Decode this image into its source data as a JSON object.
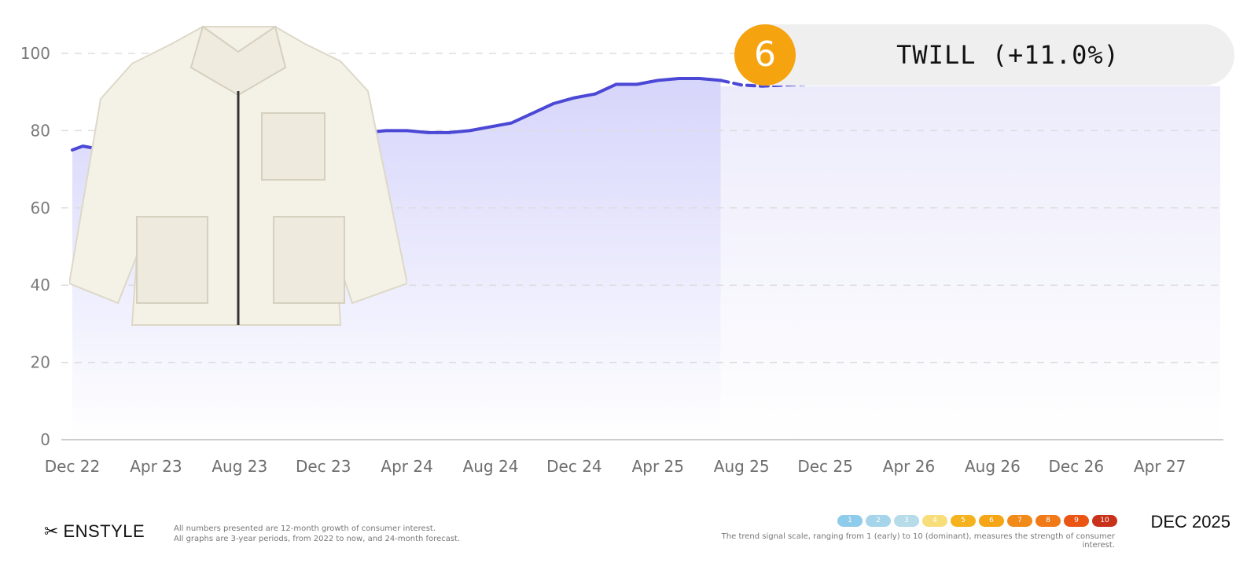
{
  "chart_data": {
    "type": "area",
    "title": "TWILL (+11.0%)",
    "xlabel": "",
    "ylabel": "",
    "ylim": [
      0,
      100
    ],
    "yticks": [
      0,
      20,
      40,
      60,
      80,
      100
    ],
    "x_tick_labels": [
      "Dec 22",
      "Apr 23",
      "Aug 23",
      "Dec 23",
      "Apr 24",
      "Aug 24",
      "Dec 24",
      "Apr 25",
      "Aug 25",
      "Dec 25",
      "Apr 26",
      "Aug 26",
      "Dec 26",
      "Apr 27"
    ],
    "grid": true,
    "series": [
      {
        "style": "solid",
        "points": [
          {
            "m": 0,
            "v": 75
          },
          {
            "m": 0.5,
            "v": 76
          },
          {
            "m": 1,
            "v": 75.5
          },
          {
            "m": 2,
            "v": 76.5
          },
          {
            "m": 3,
            "v": 76
          },
          {
            "m": 4,
            "v": 76.5
          },
          {
            "m": 5,
            "v": 77
          },
          {
            "m": 6,
            "v": 77
          },
          {
            "m": 7,
            "v": 77.5
          },
          {
            "m": 8,
            "v": 77.5
          },
          {
            "m": 9,
            "v": 77.5
          },
          {
            "m": 10,
            "v": 78
          },
          {
            "m": 11,
            "v": 77.5
          },
          {
            "m": 12,
            "v": 77.5
          },
          {
            "m": 13,
            "v": 78
          },
          {
            "m": 14,
            "v": 79.5
          },
          {
            "m": 15,
            "v": 80
          },
          {
            "m": 16,
            "v": 80
          },
          {
            "m": 17,
            "v": 79.5
          },
          {
            "m": 18,
            "v": 79.5
          },
          {
            "m": 19,
            "v": 80
          },
          {
            "m": 20,
            "v": 81
          },
          {
            "m": 21,
            "v": 82
          },
          {
            "m": 22,
            "v": 84.5
          },
          {
            "m": 23,
            "v": 87
          },
          {
            "m": 24,
            "v": 88.5
          },
          {
            "m": 25,
            "v": 89.5
          },
          {
            "m": 26,
            "v": 92
          },
          {
            "m": 27,
            "v": 92
          },
          {
            "m": 28,
            "v": 93
          },
          {
            "m": 29,
            "v": 93.5
          },
          {
            "m": 30,
            "v": 93.5
          },
          {
            "m": 31,
            "v": 93
          }
        ]
      },
      {
        "style": "dashed",
        "points": [
          {
            "m": 31,
            "v": 93
          },
          {
            "m": 32,
            "v": 91.8
          },
          {
            "m": 33,
            "v": 91.5
          },
          {
            "m": 34,
            "v": 91.8
          },
          {
            "m": 35,
            "v": 92
          }
        ]
      }
    ]
  },
  "badge": {
    "rank": "6",
    "label": "TWILL (+11.0%)",
    "color": "#f5a30f"
  },
  "footer": {
    "logo": "ENSTYLE",
    "note1": "All numbers presented are 12-month growth of consumer interest.",
    "note2": "All graphs are 3-year periods, from 2022 to now, and 24-month forecast.",
    "scale": [
      {
        "label": "1",
        "color": "#8fcbea"
      },
      {
        "label": "2",
        "color": "#a6d4ea"
      },
      {
        "label": "3",
        "color": "#b6dbe9"
      },
      {
        "label": "4",
        "color": "#f7de7a"
      },
      {
        "label": "5",
        "color": "#f5b21f"
      },
      {
        "label": "6",
        "color": "#f5a516"
      },
      {
        "label": "7",
        "color": "#f28a1a"
      },
      {
        "label": "8",
        "color": "#f07a18"
      },
      {
        "label": "9",
        "color": "#ea5514"
      },
      {
        "label": "10",
        "color": "#c8321a"
      }
    ],
    "scale_note": "The trend signal scale, ranging from 1 (early) to 10 (dominant), measures the strength of consumer interest.",
    "date": "DEC 2025"
  },
  "image": {
    "subject": "jacket-icon"
  },
  "colors": {
    "line": "#4b48d6",
    "area_top": "#dcdcfb",
    "grid": "#dddddd",
    "axis": "#cccccc"
  }
}
